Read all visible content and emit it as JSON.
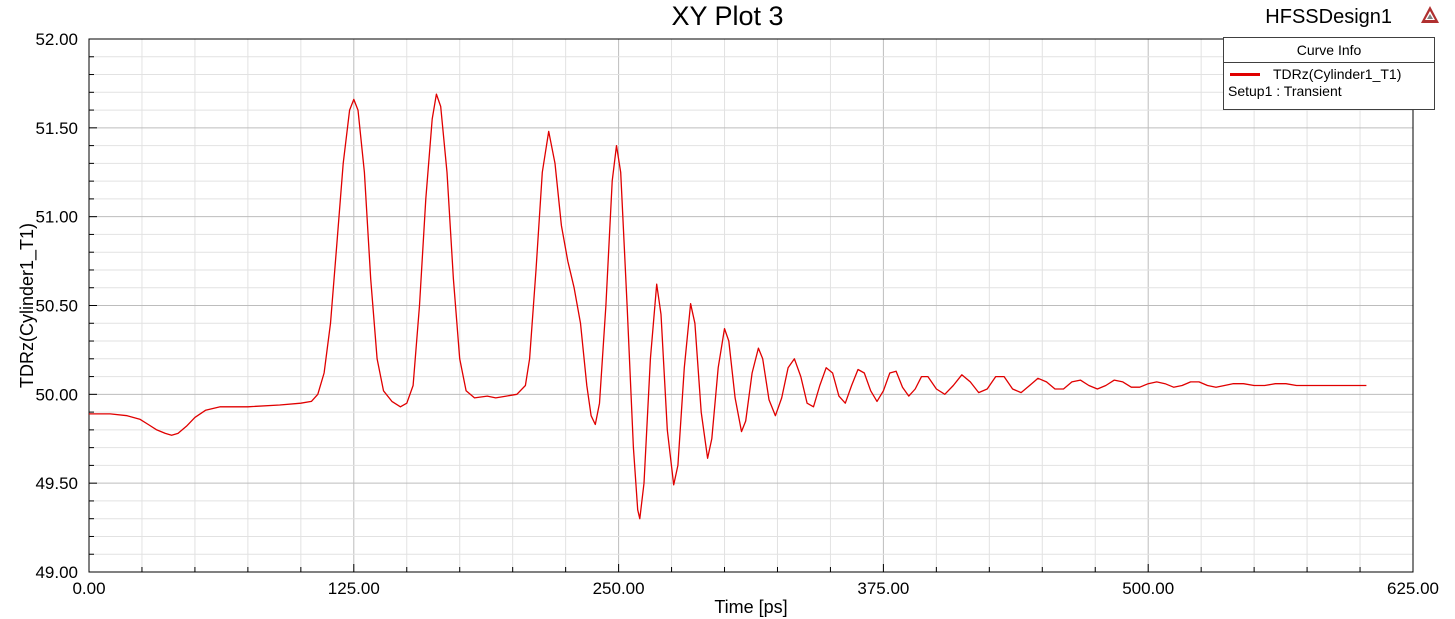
{
  "header": {
    "title": "XY Plot 3",
    "design_name": "HFSSDesign1",
    "design_icon": "ansys-logo-icon"
  },
  "legend": {
    "header": "Curve Info",
    "entries": [
      {
        "name": "TDRz(Cylinder1_T1)",
        "subtitle": "Setup1 : Transient",
        "color": "#e00000"
      }
    ]
  },
  "chart_data": {
    "type": "line",
    "title": "XY Plot 3",
    "xlabel": "Time [ps]",
    "ylabel": "TDRz(Cylinder1_T1)",
    "xlim": [
      0,
      625
    ],
    "ylim": [
      49.0,
      52.0
    ],
    "x_ticks": [
      0,
      125,
      250,
      375,
      500,
      625
    ],
    "x_tick_labels": [
      "0.00",
      "125.00",
      "250.00",
      "375.00",
      "500.00",
      "625.00"
    ],
    "y_ticks": [
      49.0,
      49.5,
      50.0,
      50.5,
      51.0,
      51.5,
      52.0
    ],
    "y_tick_labels": [
      "49.00",
      "49.50",
      "50.00",
      "50.50",
      "51.00",
      "51.50",
      "52.00"
    ],
    "grid": true,
    "legend_position": "top-right",
    "series": [
      {
        "name": "TDRz(Cylinder1_T1)",
        "color": "#e00000",
        "points": [
          [
            0,
            49.89
          ],
          [
            10,
            49.89
          ],
          [
            18,
            49.88
          ],
          [
            24,
            49.86
          ],
          [
            28,
            49.83
          ],
          [
            32,
            49.8
          ],
          [
            36,
            49.78
          ],
          [
            39,
            49.77
          ],
          [
            42,
            49.78
          ],
          [
            46,
            49.82
          ],
          [
            50,
            49.87
          ],
          [
            55,
            49.91
          ],
          [
            62,
            49.93
          ],
          [
            75,
            49.93
          ],
          [
            90,
            49.94
          ],
          [
            100,
            49.95
          ],
          [
            105,
            49.96
          ],
          [
            108,
            50.0
          ],
          [
            111,
            50.12
          ],
          [
            114,
            50.4
          ],
          [
            117,
            50.85
          ],
          [
            120,
            51.3
          ],
          [
            123,
            51.6
          ],
          [
            125,
            51.66
          ],
          [
            127,
            51.6
          ],
          [
            130,
            51.25
          ],
          [
            133,
            50.65
          ],
          [
            136,
            50.2
          ],
          [
            139,
            50.02
          ],
          [
            143,
            49.96
          ],
          [
            147,
            49.93
          ],
          [
            150,
            49.95
          ],
          [
            153,
            50.05
          ],
          [
            156,
            50.5
          ],
          [
            159,
            51.1
          ],
          [
            162,
            51.55
          ],
          [
            164,
            51.69
          ],
          [
            166,
            51.62
          ],
          [
            169,
            51.25
          ],
          [
            172,
            50.65
          ],
          [
            175,
            50.2
          ],
          [
            178,
            50.02
          ],
          [
            182,
            49.98
          ],
          [
            188,
            49.99
          ],
          [
            192,
            49.98
          ],
          [
            197,
            49.99
          ],
          [
            202,
            50.0
          ],
          [
            206,
            50.05
          ],
          [
            208,
            50.2
          ],
          [
            211,
            50.7
          ],
          [
            214,
            51.25
          ],
          [
            217,
            51.48
          ],
          [
            220,
            51.3
          ],
          [
            223,
            50.95
          ],
          [
            226,
            50.75
          ],
          [
            229,
            50.6
          ],
          [
            232,
            50.4
          ],
          [
            235,
            50.05
          ],
          [
            237,
            49.88
          ],
          [
            239,
            49.83
          ],
          [
            241,
            49.95
          ],
          [
            244,
            50.5
          ],
          [
            247,
            51.2
          ],
          [
            249,
            51.4
          ],
          [
            251,
            51.25
          ],
          [
            254,
            50.5
          ],
          [
            257,
            49.7
          ],
          [
            259,
            49.35
          ],
          [
            260,
            49.3
          ],
          [
            262,
            49.5
          ],
          [
            265,
            50.2
          ],
          [
            268,
            50.62
          ],
          [
            270,
            50.45
          ],
          [
            273,
            49.8
          ],
          [
            276,
            49.49
          ],
          [
            278,
            49.6
          ],
          [
            281,
            50.15
          ],
          [
            284,
            50.51
          ],
          [
            286,
            50.4
          ],
          [
            289,
            49.9
          ],
          [
            292,
            49.64
          ],
          [
            294,
            49.75
          ],
          [
            297,
            50.15
          ],
          [
            300,
            50.37
          ],
          [
            302,
            50.3
          ],
          [
            305,
            49.98
          ],
          [
            308,
            49.79
          ],
          [
            310,
            49.85
          ],
          [
            313,
            50.12
          ],
          [
            316,
            50.26
          ],
          [
            318,
            50.2
          ],
          [
            321,
            49.97
          ],
          [
            324,
            49.88
          ],
          [
            327,
            49.98
          ],
          [
            330,
            50.15
          ],
          [
            333,
            50.2
          ],
          [
            336,
            50.1
          ],
          [
            339,
            49.95
          ],
          [
            342,
            49.93
          ],
          [
            345,
            50.05
          ],
          [
            348,
            50.15
          ],
          [
            351,
            50.12
          ],
          [
            354,
            49.99
          ],
          [
            357,
            49.95
          ],
          [
            360,
            50.05
          ],
          [
            363,
            50.14
          ],
          [
            366,
            50.12
          ],
          [
            369,
            50.02
          ],
          [
            372,
            49.96
          ],
          [
            375,
            50.02
          ],
          [
            378,
            50.12
          ],
          [
            381,
            50.13
          ],
          [
            384,
            50.04
          ],
          [
            387,
            49.99
          ],
          [
            390,
            50.03
          ],
          [
            393,
            50.1
          ],
          [
            396,
            50.1
          ],
          [
            400,
            50.03
          ],
          [
            404,
            50.0
          ],
          [
            408,
            50.05
          ],
          [
            412,
            50.11
          ],
          [
            416,
            50.07
          ],
          [
            420,
            50.01
          ],
          [
            424,
            50.03
          ],
          [
            428,
            50.1
          ],
          [
            432,
            50.1
          ],
          [
            436,
            50.03
          ],
          [
            440,
            50.01
          ],
          [
            444,
            50.05
          ],
          [
            448,
            50.09
          ],
          [
            452,
            50.07
          ],
          [
            456,
            50.03
          ],
          [
            460,
            50.03
          ],
          [
            464,
            50.07
          ],
          [
            468,
            50.08
          ],
          [
            472,
            50.05
          ],
          [
            476,
            50.03
          ],
          [
            480,
            50.05
          ],
          [
            484,
            50.08
          ],
          [
            488,
            50.07
          ],
          [
            492,
            50.04
          ],
          [
            496,
            50.04
          ],
          [
            500,
            50.06
          ],
          [
            504,
            50.07
          ],
          [
            508,
            50.06
          ],
          [
            512,
            50.04
          ],
          [
            516,
            50.05
          ],
          [
            520,
            50.07
          ],
          [
            524,
            50.07
          ],
          [
            528,
            50.05
          ],
          [
            532,
            50.04
          ],
          [
            536,
            50.05
          ],
          [
            540,
            50.06
          ],
          [
            545,
            50.06
          ],
          [
            550,
            50.05
          ],
          [
            555,
            50.05
          ],
          [
            560,
            50.06
          ],
          [
            565,
            50.06
          ],
          [
            570,
            50.05
          ],
          [
            580,
            50.05
          ],
          [
            590,
            50.05
          ],
          [
            600,
            50.05
          ],
          [
            603,
            50.05
          ]
        ]
      }
    ]
  }
}
